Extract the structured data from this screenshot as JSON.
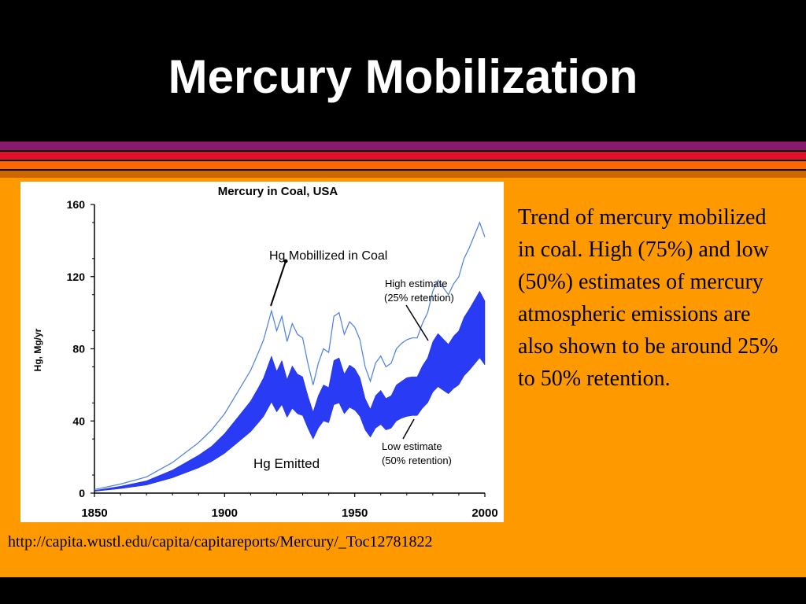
{
  "slide": {
    "title": "Mercury Mobilization",
    "description": "Trend of mercury mobilized in coal. High (75%) and low (50%) estimates of mercury atmospheric emissions are also shown to be around 25% to 50% retention.",
    "source_url": "http://capita.wustl.edu/capita/capitareports/Mercury/_Toc12781822"
  },
  "colors": {
    "background": "#000000",
    "panel": "#ff9900",
    "stripe_purple": "#8a1a6e",
    "stripe_red": "#e0102a",
    "stripe_darkorange": "#cc6600",
    "mobilized_line": "#4a7fe0",
    "emitted_band": "#2a3bf5"
  },
  "chart_data": {
    "type": "area",
    "title": "Mercury in Coal, USA",
    "xlabel": "",
    "ylabel": "Hg, Mg/yr",
    "xlim": [
      1850,
      2000
    ],
    "ylim": [
      0,
      160
    ],
    "x_ticks": [
      "1850",
      "1900",
      "1950",
      "2000"
    ],
    "y_ticks": [
      "0",
      "40",
      "80",
      "120",
      "160"
    ],
    "grid": false,
    "x": [
      1850,
      1860,
      1870,
      1880,
      1890,
      1895,
      1900,
      1905,
      1910,
      1913,
      1915,
      1918,
      1920,
      1922,
      1924,
      1926,
      1928,
      1930,
      1932,
      1934,
      1936,
      1938,
      1940,
      1942,
      1944,
      1946,
      1948,
      1950,
      1952,
      1954,
      1956,
      1958,
      1960,
      1962,
      1964,
      1966,
      1968,
      1970,
      1972,
      1974,
      1976,
      1978,
      1980,
      1982,
      1984,
      1986,
      1988,
      1990,
      1992,
      1994,
      1996,
      1998,
      2000
    ],
    "series": [
      {
        "name": "Hg Mobillized in Coal",
        "values": [
          2,
          5,
          9,
          17,
          28,
          35,
          44,
          56,
          68,
          78,
          85,
          101,
          90,
          98,
          84,
          94,
          88,
          86,
          72,
          60,
          72,
          80,
          78,
          98,
          100,
          88,
          95,
          92,
          85,
          70,
          62,
          72,
          76,
          70,
          72,
          80,
          83,
          85,
          86,
          86,
          94,
          100,
          112,
          118,
          114,
          110,
          116,
          120,
          130,
          136,
          143,
          150,
          142
        ]
      },
      {
        "name": "High estimate (25% retention)",
        "values": [
          1.5,
          3.8,
          6.8,
          12.8,
          21,
          26,
          33,
          42,
          51,
          58.5,
          64,
          76,
          67.5,
          73.5,
          63,
          70.5,
          66,
          64.5,
          54,
          45,
          54,
          60,
          58.5,
          73.5,
          75,
          66,
          71,
          69,
          64,
          52.5,
          46.5,
          54,
          57,
          52.5,
          54,
          60,
          62,
          64,
          64.5,
          64.5,
          70.5,
          75,
          84,
          88.5,
          85.5,
          82.5,
          87,
          90,
          97.5,
          102,
          107,
          112,
          106.5
        ]
      },
      {
        "name": "Low estimate (50% retention)",
        "values": [
          1,
          2.5,
          4.5,
          8.5,
          14,
          17.5,
          22,
          28,
          34,
          39,
          42.5,
          50.5,
          45,
          49,
          42,
          47,
          44,
          43,
          36,
          30,
          36,
          40,
          39,
          49,
          50,
          44,
          47.5,
          46,
          42.5,
          35,
          31,
          36,
          38,
          35,
          36,
          40,
          41.5,
          42.5,
          43,
          43,
          47,
          50,
          56,
          59,
          57,
          55,
          58,
          60,
          65,
          68,
          71.5,
          75,
          71
        ]
      }
    ],
    "annotations": [
      "Hg Mobillized in Coal",
      "High estimate",
      "(25% retention)",
      "Low estimate",
      "(50% retention)",
      "Hg Emitted"
    ]
  }
}
